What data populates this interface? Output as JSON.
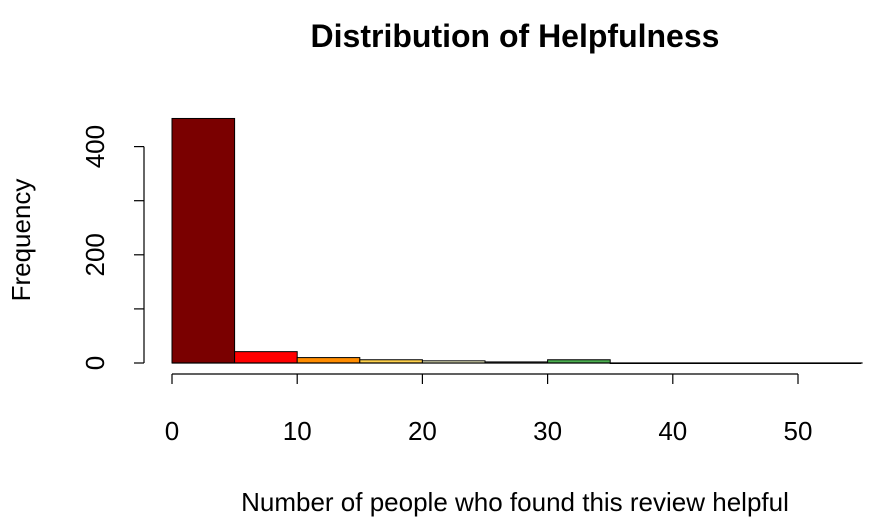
{
  "chart_data": {
    "type": "bar",
    "subtype": "histogram",
    "title": "Distribution of Helpfulness",
    "xlabel": "Number of people who found this review helpful",
    "ylabel": "Frequency",
    "bins": [
      {
        "from": 0,
        "to": 5,
        "count": 452,
        "color": "#7a0000"
      },
      {
        "from": 5,
        "to": 10,
        "count": 21,
        "color": "#ff0000"
      },
      {
        "from": 10,
        "to": 15,
        "count": 10,
        "color": "#ff8c00"
      },
      {
        "from": 15,
        "to": 20,
        "count": 6,
        "color": "#ffd24d"
      },
      {
        "from": 20,
        "to": 25,
        "count": 4,
        "color": "#ffffd0"
      },
      {
        "from": 25,
        "to": 30,
        "count": 2,
        "color": "#f0f0e0"
      },
      {
        "from": 30,
        "to": 35,
        "count": 6,
        "color": "#4caf50"
      },
      {
        "from": 35,
        "to": 40,
        "count": 0,
        "color": "#4caf50"
      },
      {
        "from": 40,
        "to": 45,
        "count": 0,
        "color": "#2e7d32"
      },
      {
        "from": 45,
        "to": 50,
        "count": 0,
        "color": "#2e7d32"
      },
      {
        "from": 50,
        "to": 55,
        "count": 0,
        "color": "#1b5e20"
      }
    ],
    "xlim": [
      0,
      55
    ],
    "ylim": [
      0,
      452
    ],
    "xticks": [
      0,
      10,
      20,
      30,
      40,
      50
    ],
    "yticks": [
      0,
      100,
      200,
      300,
      400
    ],
    "ytick_labels": [
      "0",
      "",
      "200",
      "",
      "400"
    ],
    "grid": false,
    "legend": "none"
  }
}
